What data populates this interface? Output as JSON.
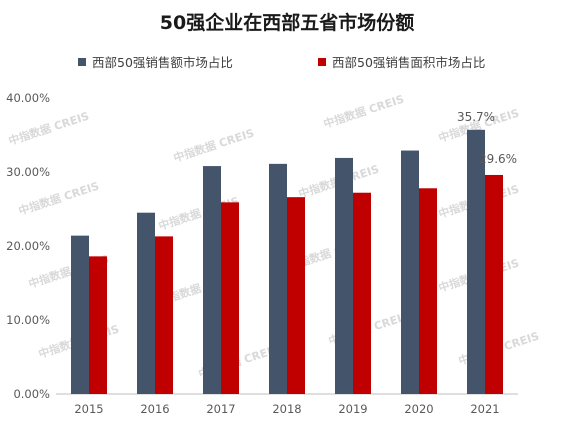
{
  "chart_data": {
    "type": "bar",
    "title": "50强企业在西部五省市场份额",
    "categories": [
      "2015",
      "2016",
      "2017",
      "2018",
      "2019",
      "2020",
      "2021"
    ],
    "series": [
      {
        "name": "西部50强销售额市场占比",
        "color": "#44546a",
        "values": [
          21.4,
          24.5,
          30.8,
          31.1,
          31.9,
          32.9,
          35.7
        ]
      },
      {
        "name": "西部50强销售面积市场占比",
        "color": "#c00000",
        "values": [
          18.6,
          21.3,
          25.9,
          26.6,
          27.2,
          27.8,
          29.6
        ]
      }
    ],
    "data_labels": [
      "35.7%",
      "29.6%"
    ],
    "y_ticks": [
      "0.00%",
      "10.00%",
      "20.00%",
      "30.00%",
      "40.00%"
    ],
    "ylim": [
      0,
      40
    ],
    "grid": false,
    "legend_position": "top",
    "watermark": "中指数据 CREIS"
  }
}
